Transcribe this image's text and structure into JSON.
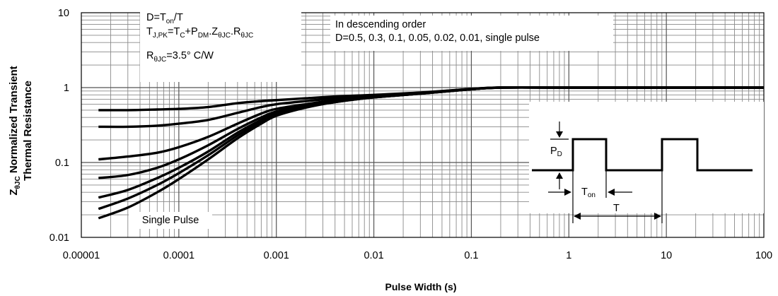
{
  "chart_data": {
    "type": "line",
    "title": "",
    "xlabel": "Pulse Width (s)",
    "ylabel_line1": "Normalized Transient",
    "ylabel_line2": "Thermal Resistance",
    "ylabel_symbol": "Z",
    "ylabel_symbol_sub": "θJC",
    "x_scale": "log",
    "y_scale": "log",
    "xlim": [
      1e-05,
      100
    ],
    "ylim": [
      0.01,
      10
    ],
    "grid": true,
    "x_tick_labels": [
      "0.00001",
      "0.0001",
      "0.001",
      "0.01",
      "0.1",
      "1",
      "10",
      "100"
    ],
    "y_tick_labels": [
      "0.01",
      "0.1",
      "1",
      "10"
    ],
    "x": [
      1.5e-05,
      3e-05,
      6e-05,
      0.0001,
      0.0002,
      0.0004,
      0.0007,
      0.001,
      0.002,
      0.004,
      0.01,
      0.03,
      0.1,
      0.2,
      1,
      10,
      100
    ],
    "series": [
      {
        "values": [
          0.5,
          0.5,
          0.51,
          0.52,
          0.55,
          0.62,
          0.66,
          0.68,
          0.72,
          0.76,
          0.8,
          0.86,
          0.96,
          1.0,
          1.0,
          1.0,
          1.0
        ]
      },
      {
        "values": [
          0.3,
          0.3,
          0.31,
          0.33,
          0.37,
          0.46,
          0.55,
          0.6,
          0.66,
          0.72,
          0.78,
          0.85,
          0.96,
          1.0,
          1.0,
          1.0,
          1.0
        ]
      },
      {
        "values": [
          0.11,
          0.12,
          0.135,
          0.16,
          0.22,
          0.33,
          0.45,
          0.52,
          0.6,
          0.68,
          0.76,
          0.84,
          0.95,
          1.0,
          1.0,
          1.0,
          1.0
        ]
      },
      {
        "values": [
          0.062,
          0.068,
          0.085,
          0.11,
          0.17,
          0.28,
          0.4,
          0.48,
          0.58,
          0.66,
          0.75,
          0.84,
          0.95,
          1.0,
          1.0,
          1.0,
          1.0
        ]
      },
      {
        "values": [
          0.034,
          0.043,
          0.062,
          0.085,
          0.14,
          0.25,
          0.37,
          0.45,
          0.56,
          0.65,
          0.74,
          0.83,
          0.95,
          1.0,
          1.0,
          1.0,
          1.0
        ]
      },
      {
        "values": [
          0.024,
          0.033,
          0.05,
          0.072,
          0.125,
          0.23,
          0.35,
          0.43,
          0.55,
          0.64,
          0.74,
          0.83,
          0.95,
          1.0,
          1.0,
          1.0,
          1.0
        ]
      },
      {
        "values": [
          0.018,
          0.025,
          0.04,
          0.06,
          0.11,
          0.21,
          0.33,
          0.42,
          0.54,
          0.64,
          0.74,
          0.83,
          0.95,
          1.0,
          1.0,
          1.0,
          1.0
        ]
      }
    ],
    "annotations": {
      "formula_duty": {
        "a": "D=T",
        "sub": "on",
        "b": "/T"
      },
      "formula_tj": {
        "a": "T",
        "sub1": "J,PK",
        "b": "=T",
        "sub2": "C",
        "c": "+P",
        "sub3": "DM",
        "d": ".Z",
        "sub4": "θJC",
        "e": ".R",
        "sub5": "θJC"
      },
      "formula_r": {
        "a": "R",
        "sub": "θJC",
        "b": "=3.5°  C/W"
      },
      "order_line1": "In descending order",
      "order_line2": "D=0.5, 0.3, 0.1, 0.05, 0.02, 0.01, single pulse",
      "single_pulse": "Single Pulse"
    },
    "inset": {
      "pd_main": "P",
      "pd_sub": "D",
      "ton_main": "T",
      "ton_sub": "on",
      "t_label": "T"
    }
  }
}
